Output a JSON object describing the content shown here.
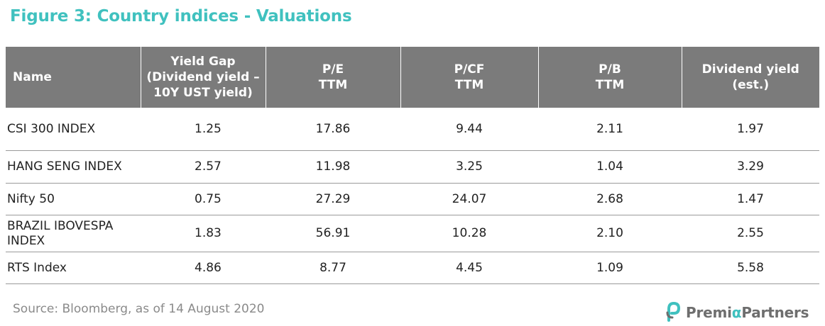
{
  "title": "Figure 3: Country indices - Valuations",
  "table": {
    "headers": [
      [
        "Name"
      ],
      [
        "Yield Gap",
        "(Dividend yield –",
        "10Y UST yield)"
      ],
      [
        "P/E",
        "TTM"
      ],
      [
        "P/CF",
        "TTM"
      ],
      [
        "P/B",
        "TTM"
      ],
      [
        "Dividend yield",
        "(est.)"
      ]
    ],
    "rows": [
      [
        [
          "CSI 300 INDEX"
        ],
        "1.25",
        "17.86",
        "9.44",
        "2.11",
        "1.97"
      ],
      [
        [
          "HANG SENG INDEX"
        ],
        "2.57",
        "11.98",
        "3.25",
        "1.04",
        "3.29"
      ],
      [
        [
          "Nifty 50"
        ],
        "0.75",
        "27.29",
        "24.07",
        "2.68",
        "1.47"
      ],
      [
        [
          "BRAZIL IBOVESPA",
          "INDEX"
        ],
        "1.83",
        "56.91",
        "10.28",
        "2.10",
        "2.55"
      ],
      [
        [
          "RTS Index"
        ],
        "4.86",
        "8.77",
        "4.45",
        "1.09",
        "5.58"
      ]
    ]
  },
  "source": "Source: Bloomberg, as of 14 August 2020",
  "logo": {
    "text_start": "Premi",
    "text_accent": "α",
    "text_end": "Partners",
    "icon": "premia-logo-icon",
    "accent_color": "#40c1bf"
  }
}
